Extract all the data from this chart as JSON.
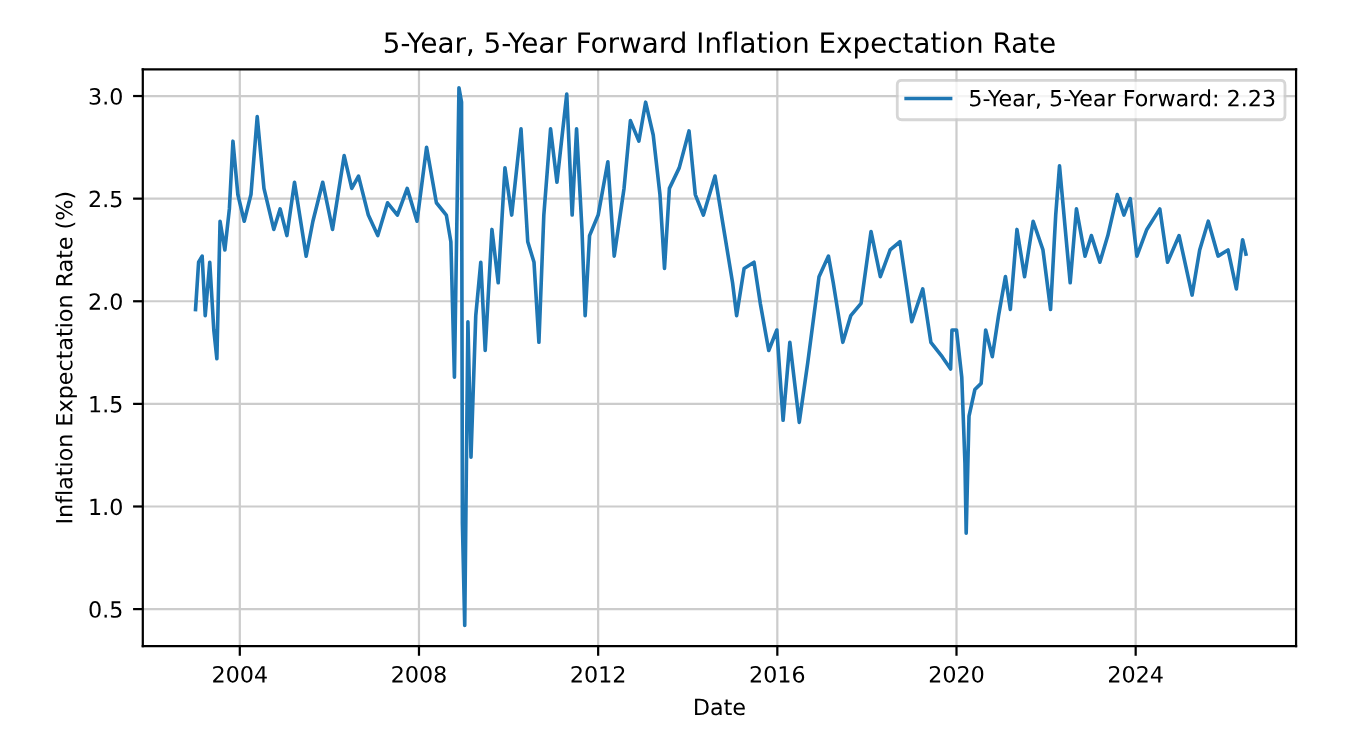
{
  "chart_data": {
    "type": "line",
    "title": "5-Year, 5-Year Forward Inflation Expectation Rate",
    "xlabel": "Date",
    "ylabel": "Inflation Expectation Rate (%)",
    "xlim": [
      "2001-11-01",
      "2027-08-01"
    ],
    "xticks": [
      "2004",
      "2008",
      "2012",
      "2016",
      "2020",
      "2024"
    ],
    "ylim": [
      0.32,
      3.13
    ],
    "yticks": [
      0.5,
      {
        "value": 1.0,
        "label": "1.0"
      },
      1.5,
      {
        "value": 2.0,
        "label": "2.0"
      },
      2.5,
      {
        "value": 3.0,
        "label": "3.0"
      }
    ],
    "grid": true,
    "legend": "top right",
    "line_style": "solid",
    "marker": "none",
    "series": [
      {
        "name": "5-Year, 5-Year Forward: 2.23",
        "color": "#1f77b4",
        "x": [
          "2003-01-05",
          "2003-01-30",
          "2003-02-28",
          "2003-03-25",
          "2003-05-01",
          "2003-06-03",
          "2003-06-28",
          "2003-07-24",
          "2003-09-01",
          "2003-10-08",
          "2003-11-06",
          "2003-12-16",
          "2004-02-06",
          "2004-04-01",
          "2004-05-22",
          "2004-07-16",
          "2004-10-04",
          "2004-11-25",
          "2005-01-19",
          "2005-03-22",
          "2005-06-25",
          "2005-08-19",
          "2005-11-07",
          "2006-01-26",
          "2006-05-01",
          "2006-07-02",
          "2006-08-26",
          "2006-11-14",
          "2007-01-30",
          "2007-04-20",
          "2007-07-09",
          "2007-09-27",
          "2007-12-16",
          "2008-03-03",
          "2008-05-22",
          "2008-08-11",
          "2008-09-17",
          "2008-10-16",
          "2008-11-22",
          "2008-12-13",
          "2008-12-20",
          "2009-01-08",
          "2009-02-03",
          "2009-02-28",
          "2009-04-08",
          "2009-05-19",
          "2009-06-24",
          "2009-08-18",
          "2009-10-08",
          "2009-12-02",
          "2010-01-26",
          "2010-04-12",
          "2010-06-06",
          "2010-07-27",
          "2010-09-05",
          "2010-10-15",
          "2010-12-09",
          "2011-01-30",
          "2011-04-20",
          "2011-06-03",
          "2011-07-09",
          "2011-08-22",
          "2011-09-17",
          "2011-10-23",
          "2012-01-01",
          "2012-03-20",
          "2012-05-11",
          "2012-07-30",
          "2012-09-20",
          "2012-11-28",
          "2013-01-22",
          "2013-03-25",
          "2013-05-19",
          "2013-06-25",
          "2013-08-04",
          "2013-10-23",
          "2014-01-11",
          "2014-03-03",
          "2014-05-08",
          "2014-08-11",
          "2014-10-30",
          "2015-01-01",
          "2015-02-03",
          "2015-04-05",
          "2015-06-25",
          "2015-08-15",
          "2015-10-23",
          "2015-12-28",
          "2016-02-17",
          "2016-04-12",
          "2016-06-28",
          "2016-09-05",
          "2016-12-06",
          "2017-02-21",
          "2017-04-01",
          "2017-06-18",
          "2017-08-22",
          "2017-11-14",
          "2018-02-03",
          "2018-04-20",
          "2018-07-09",
          "2018-09-27",
          "2019-01-01",
          "2019-04-01",
          "2019-06-06",
          "2019-09-06",
          "2019-11-14",
          "2019-11-25",
          "2020-01-01",
          "2020-02-13",
          "2020-03-10",
          "2020-03-20",
          "2020-04-12",
          "2020-05-30",
          "2020-07-20",
          "2020-08-26",
          "2020-10-19",
          "2020-12-09",
          "2021-02-03",
          "2021-03-15",
          "2021-05-08",
          "2021-07-09",
          "2021-09-17",
          "2021-12-06",
          "2022-02-06",
          "2022-03-20",
          "2022-04-20",
          "2022-06-06",
          "2022-07-16",
          "2022-09-05",
          "2022-11-14",
          "2023-01-05",
          "2023-03-15",
          "2023-05-19",
          "2023-08-04",
          "2023-09-27",
          "2023-11-18",
          "2024-01-11",
          "2024-04-01",
          "2024-07-16",
          "2024-09-17",
          "2024-12-20",
          "2025-04-05",
          "2025-06-06",
          "2025-08-15",
          "2025-11-03",
          "2026-01-23",
          "2026-04-01",
          "2026-05-22",
          "2026-06-18"
        ],
        "values": [
          1.96,
          2.19,
          2.22,
          1.93,
          2.19,
          1.86,
          1.72,
          2.39,
          2.25,
          2.45,
          2.78,
          2.52,
          2.39,
          2.52,
          2.9,
          2.55,
          2.35,
          2.45,
          2.32,
          2.58,
          2.22,
          2.39,
          2.58,
          2.35,
          2.71,
          2.55,
          2.61,
          2.42,
          2.32,
          2.48,
          2.42,
          2.55,
          2.39,
          2.75,
          2.48,
          2.42,
          2.29,
          1.63,
          3.04,
          2.97,
          0.92,
          0.42,
          1.9,
          1.24,
          1.93,
          2.19,
          1.76,
          2.35,
          2.09,
          2.65,
          2.42,
          2.84,
          2.29,
          2.19,
          1.8,
          2.42,
          2.84,
          2.58,
          3.01,
          2.42,
          2.84,
          2.35,
          1.93,
          2.32,
          2.42,
          2.68,
          2.22,
          2.55,
          2.88,
          2.78,
          2.97,
          2.81,
          2.52,
          2.16,
          2.55,
          2.65,
          2.83,
          2.52,
          2.42,
          2.61,
          2.32,
          2.09,
          1.93,
          2.16,
          2.19,
          1.99,
          1.76,
          1.86,
          1.42,
          1.8,
          1.41,
          1.7,
          2.12,
          2.22,
          2.09,
          1.8,
          1.93,
          1.99,
          2.34,
          2.12,
          2.25,
          2.29,
          1.9,
          2.06,
          1.8,
          1.73,
          1.67,
          1.86,
          1.86,
          1.63,
          1.21,
          0.87,
          1.44,
          1.57,
          1.6,
          1.86,
          1.73,
          1.93,
          2.12,
          1.96,
          2.35,
          2.12,
          2.39,
          2.25,
          1.96,
          2.42,
          2.66,
          2.35,
          2.09,
          2.45,
          2.22,
          2.32,
          2.19,
          2.32,
          2.52,
          2.42,
          2.5,
          2.22,
          2.35,
          2.45,
          2.19,
          2.32,
          2.03,
          2.25,
          2.39,
          2.22,
          2.25,
          2.06,
          2.3,
          2.23
        ]
      }
    ]
  }
}
